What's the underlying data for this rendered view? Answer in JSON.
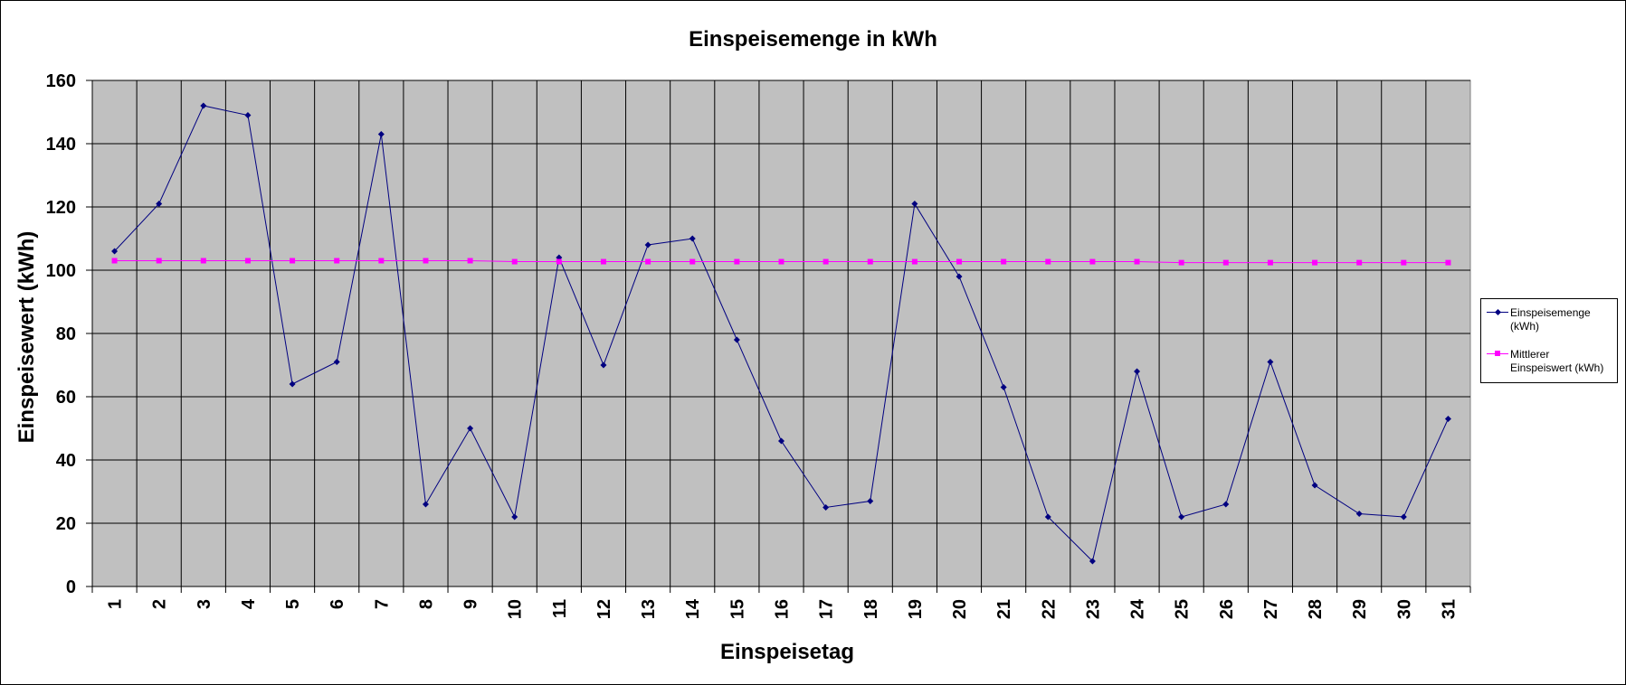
{
  "chart_data": {
    "type": "line",
    "title": "Einspeisemenge in kWh",
    "xlabel": "Einspeisetag",
    "ylabel": "Einspeisewert  (kWh)",
    "categories": [
      "1",
      "2",
      "3",
      "4",
      "5",
      "6",
      "7",
      "8",
      "9",
      "10",
      "11",
      "12",
      "13",
      "14",
      "15",
      "16",
      "17",
      "18",
      "19",
      "20",
      "21",
      "22",
      "23",
      "24",
      "25",
      "26",
      "27",
      "28",
      "29",
      "30",
      "31"
    ],
    "ylim": [
      0,
      160
    ],
    "yticks": [
      0,
      20,
      40,
      60,
      80,
      100,
      120,
      140,
      160
    ],
    "grid": true,
    "legend_position": "right",
    "plot_background": "#c0c0c0",
    "series": [
      {
        "name": "Einspeisemenge (kWh)",
        "legend_lines": [
          "Einspeisemenge",
          "(kWh)"
        ],
        "color": "#000080",
        "marker": "diamond",
        "values": [
          106,
          121,
          152,
          149,
          64,
          71,
          143,
          26,
          50,
          22,
          104,
          70,
          108,
          110,
          78,
          46,
          25,
          27,
          121,
          98,
          63,
          22,
          8,
          68,
          22,
          26,
          71,
          32,
          23,
          22,
          53
        ]
      },
      {
        "name": "Mittlerer Einspeiswert (kWh)",
        "legend_lines": [
          "Mittlerer",
          "Einspeiswert (kWh)"
        ],
        "color": "#ff00ff",
        "marker": "square",
        "values": [
          103,
          103,
          103,
          103,
          103,
          103,
          103,
          103,
          103,
          102.7,
          102.7,
          102.7,
          102.7,
          102.7,
          102.7,
          102.7,
          102.7,
          102.7,
          102.7,
          102.7,
          102.7,
          102.7,
          102.7,
          102.7,
          102.4,
          102.4,
          102.4,
          102.4,
          102.4,
          102.4,
          102.4
        ]
      }
    ]
  }
}
